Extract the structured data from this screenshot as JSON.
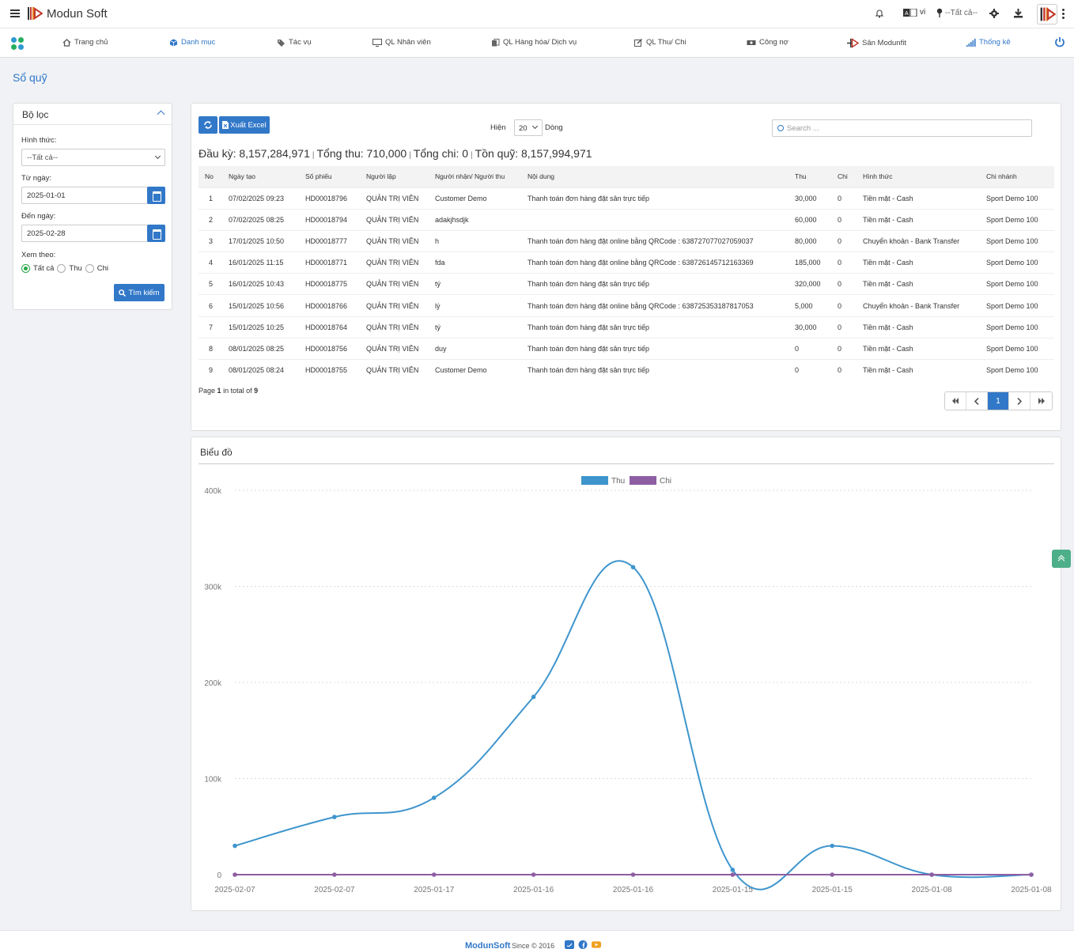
{
  "app": {
    "brand": "Modun Soft",
    "language": "vi",
    "location_selector": "--Tất cả--"
  },
  "nav": [
    {
      "label": "Trang chủ",
      "icon": "home-icon"
    },
    {
      "label": "Danh mục",
      "icon": "cube-icon",
      "active": true
    },
    {
      "label": "Tác vụ",
      "icon": "tag-icon"
    },
    {
      "label": "QL Nhân viên",
      "icon": "monitor-icon"
    },
    {
      "label": "QL Hàng hóa/ Dịch vụ",
      "icon": "copy-icon"
    },
    {
      "label": "QL Thu/ Chi",
      "icon": "edit-icon"
    },
    {
      "label": "Công nợ",
      "icon": "money-icon"
    },
    {
      "label": "Sân Modunfit",
      "icon": "modunfit-icon"
    },
    {
      "label": "Thống kê",
      "icon": "signal-icon",
      "active": true
    }
  ],
  "page": {
    "title": "Sổ quỹ"
  },
  "filter": {
    "title": "Bộ lọc",
    "method_label": "Hình thức:",
    "method_value": "--Tất cả--",
    "from_label": "Từ ngày:",
    "from_value": "2025-01-01",
    "to_label": "Đến ngày:",
    "to_value": "2025-02-28",
    "view_label": "Xem theo:",
    "view_options": [
      "Tất cả",
      "Thu",
      "Chi"
    ],
    "view_selected": "Tất cả",
    "search_button": "Tìm kiếm"
  },
  "toolbar": {
    "excel_label": "Xuất Excel",
    "show_label": "Hiện",
    "show_value": "20",
    "rows_label": "Dòng",
    "search_placeholder": "Search ..."
  },
  "summary": {
    "opening": "Đầu kỳ: 8,157,284,971",
    "total_in": "Tổng thu: 710,000",
    "total_out": "Tổng chi: 0",
    "balance": "Tồn quỹ: 8,157,994,971"
  },
  "table": {
    "columns": [
      "No",
      "Ngày tạo",
      "Số phiếu",
      "Người lập",
      "Người nhận/ Người thu",
      "Nội dung",
      "Thu",
      "Chi",
      "Hình thức",
      "Chi nhánh"
    ],
    "rows": [
      [
        "1",
        "07/02/2025 09:23",
        "HD00018796",
        "QUẢN TRỊ VIÊN",
        "Customer Demo",
        "Thanh toán đơn hàng đặt sân trực tiếp",
        "30,000",
        "0",
        "Tiền mặt - Cash",
        "Sport Demo 100"
      ],
      [
        "2",
        "07/02/2025 08:25",
        "HD00018794",
        "QUẢN TRỊ VIÊN",
        "adakjhsdjk",
        "",
        "60,000",
        "0",
        "Tiền mặt - Cash",
        "Sport Demo 100"
      ],
      [
        "3",
        "17/01/2025 10:50",
        "HD00018777",
        "QUẢN TRỊ VIÊN",
        "h",
        "Thanh toán đơn hàng đặt online bằng QRCode : 638727077027059037",
        "80,000",
        "0",
        "Chuyển khoản - Bank Transfer",
        "Sport Demo 100"
      ],
      [
        "4",
        "16/01/2025 11:15",
        "HD00018771",
        "QUẢN TRỊ VIÊN",
        "fda",
        "Thanh toán đơn hàng đặt online bằng QRCode : 638726145712163369",
        "185,000",
        "0",
        "Tiền mặt - Cash",
        "Sport Demo 100"
      ],
      [
        "5",
        "16/01/2025 10:43",
        "HD00018775",
        "QUẢN TRỊ VIÊN",
        "tý",
        "Thanh toán đơn hàng đặt sân trực tiếp",
        "320,000",
        "0",
        "Tiền mặt - Cash",
        "Sport Demo 100"
      ],
      [
        "6",
        "15/01/2025 10:56",
        "HD00018766",
        "QUẢN TRỊ VIÊN",
        "lý",
        "Thanh toán đơn hàng đặt online bằng QRCode : 638725353187817053",
        "5,000",
        "0",
        "Chuyển khoản - Bank Transfer",
        "Sport Demo 100"
      ],
      [
        "7",
        "15/01/2025 10:25",
        "HD00018764",
        "QUẢN TRỊ VIÊN",
        "tý",
        "Thanh toán đơn hàng đặt sân trực tiếp",
        "30,000",
        "0",
        "Tiền mặt - Cash",
        "Sport Demo 100"
      ],
      [
        "8",
        "08/01/2025 08:25",
        "HD00018756",
        "QUẢN TRỊ VIÊN",
        "duy",
        "Thanh toán đơn hàng đặt sân trực tiếp",
        "0",
        "0",
        "Tiền mặt - Cash",
        "Sport Demo 100"
      ],
      [
        "9",
        "08/01/2025 08:24",
        "HD00018755",
        "QUẢN TRỊ VIÊN",
        "Customer Demo",
        "Thanh toán đơn hàng đặt sân trực tiếp",
        "0",
        "0",
        "Tiền mặt - Cash",
        "Sport Demo 100"
      ]
    ]
  },
  "pagination": {
    "prefix": "Page",
    "page": "1",
    "middle": "in total of",
    "total": "9",
    "current": "1"
  },
  "chart_panel": {
    "title": "Biểu đồ"
  },
  "chart_data": {
    "type": "line",
    "categories": [
      "2025-02-07",
      "2025-02-07",
      "2025-01-17",
      "2025-01-16",
      "2025-01-16",
      "2025-01-15",
      "2025-01-15",
      "2025-01-08",
      "2025-01-08"
    ],
    "series": [
      {
        "name": "Thu",
        "color": "#3e95cd",
        "values": [
          30000,
          60000,
          80000,
          185000,
          320000,
          5000,
          30000,
          0,
          0
        ]
      },
      {
        "name": "Chi",
        "color": "#8e5ea2",
        "values": [
          0,
          0,
          0,
          0,
          0,
          0,
          0,
          0,
          0
        ]
      }
    ],
    "y_ticks": [
      "0",
      "100k",
      "200k",
      "300k",
      "400k"
    ],
    "ylim": [
      0,
      400000
    ],
    "grid": true,
    "legend_position": "top"
  },
  "footer": {
    "brand": "ModunSoft",
    "since": "Since © 2016"
  }
}
